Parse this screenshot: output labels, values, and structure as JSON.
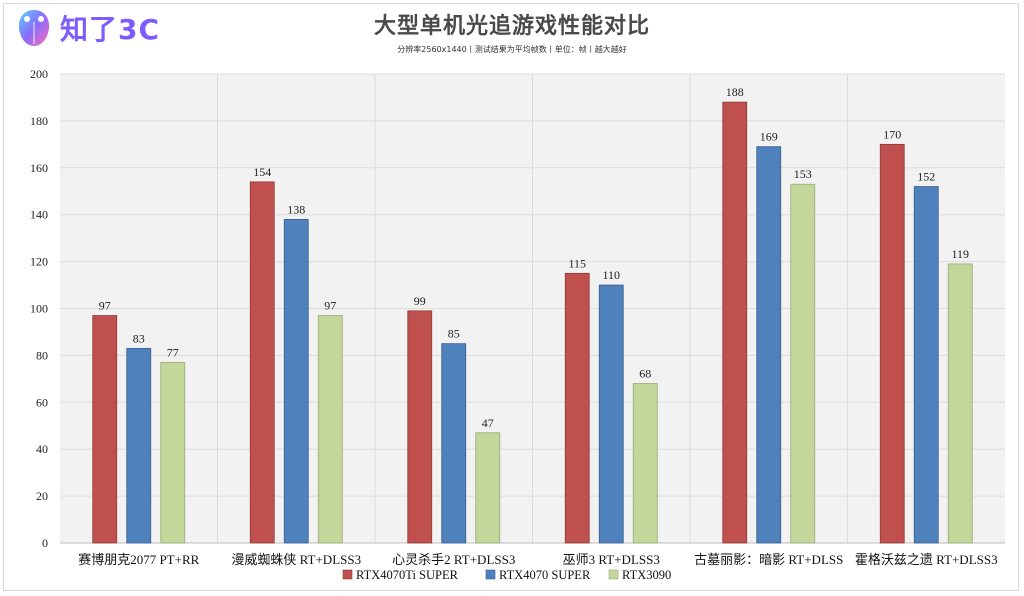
{
  "header": {
    "logo_text": "知了3C",
    "title": "大型单机光追游戏性能对比",
    "subtitle": "分辨率2560x1440丨测试结果为平均帧数丨单位：帧丨越大越好"
  },
  "colors": {
    "series": [
      "#c0504d",
      "#4f81bd",
      "#c4d79b"
    ],
    "series_stroke": [
      "#8c3a38",
      "#385d8a",
      "#98a878"
    ],
    "plot_bg": "#f2f2f2",
    "grid": "#dcdcdc"
  },
  "chart_data": {
    "type": "bar",
    "title": "大型单机光追游戏性能对比",
    "categories": [
      "赛博朋克2077 PT+RR",
      "漫威蜘蛛侠 RT+DLSS3",
      "心灵杀手2  RT+DLSS3",
      "巫师3  RT+DLSS3",
      "古墓丽影：暗影  RT+DLSS",
      "霍格沃兹之遗  RT+DLSS3"
    ],
    "series": [
      {
        "name": "RTX4070Ti SUPER",
        "values": [
          97,
          154,
          99,
          115,
          188,
          170
        ]
      },
      {
        "name": "RTX4070 SUPER",
        "values": [
          83,
          138,
          85,
          110,
          169,
          152
        ]
      },
      {
        "name": "RTX3090",
        "values": [
          77,
          97,
          47,
          68,
          153,
          119
        ]
      }
    ],
    "yticks": [
      0,
      20,
      40,
      60,
      80,
      100,
      120,
      140,
      160,
      180,
      200
    ],
    "ylim": [
      0,
      200
    ],
    "grid": true,
    "legend_position": "bottom"
  }
}
